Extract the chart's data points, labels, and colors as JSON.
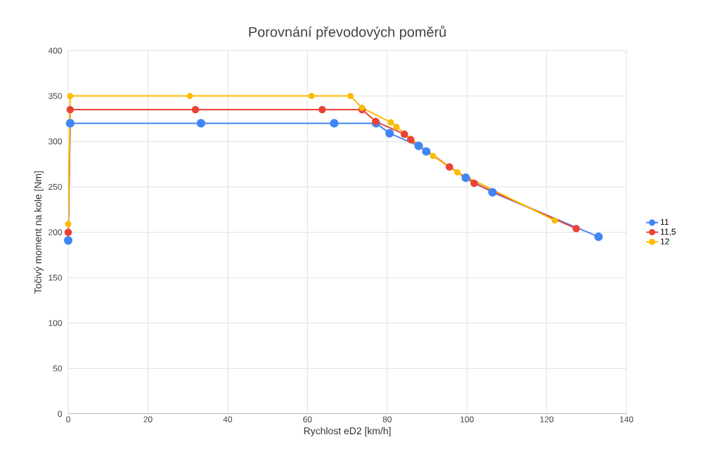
{
  "chart_data": {
    "type": "line",
    "title": "Porovnání převodových poměrů",
    "xlabel": "Rychlost eD2 [km/h]",
    "ylabel": "Točivý moment na kole [Nm]",
    "xlim": [
      0,
      140
    ],
    "xticks": [
      0,
      20,
      40,
      60,
      80,
      100,
      120,
      140
    ],
    "ylim": [
      0,
      400
    ],
    "yticks": [
      0,
      50,
      100,
      150,
      200,
      250,
      300,
      350,
      400
    ],
    "grid": true,
    "legend": "right",
    "marker": "circle",
    "line_style": "solid",
    "series": [
      {
        "name": "11",
        "color": "#4285f4",
        "x": [
          0,
          0.5,
          33.3,
          66.7,
          77.2,
          80.6,
          87.9,
          89.8,
          99.7,
          106.4,
          133
        ],
        "values": [
          191,
          320,
          320,
          320,
          320,
          309,
          295,
          289,
          260,
          244,
          195
        ]
      },
      {
        "name": "11,5",
        "color": "#ea4335",
        "x": [
          0,
          0.5,
          31.9,
          63.7,
          73.7,
          77.1,
          84.3,
          85.9,
          95.6,
          101.8,
          127.4
        ],
        "values": [
          200,
          335,
          335,
          335,
          335,
          322,
          308,
          302,
          272,
          254,
          204
        ]
      },
      {
        "name": "12",
        "color": "#fbbc04",
        "x": [
          0,
          0.5,
          30.5,
          61,
          70.8,
          73.7,
          80.9,
          82.3,
          91.5,
          97.6,
          122
        ],
        "values": [
          209,
          350,
          350,
          350,
          350,
          337,
          321,
          316,
          284,
          266,
          213
        ]
      }
    ]
  }
}
